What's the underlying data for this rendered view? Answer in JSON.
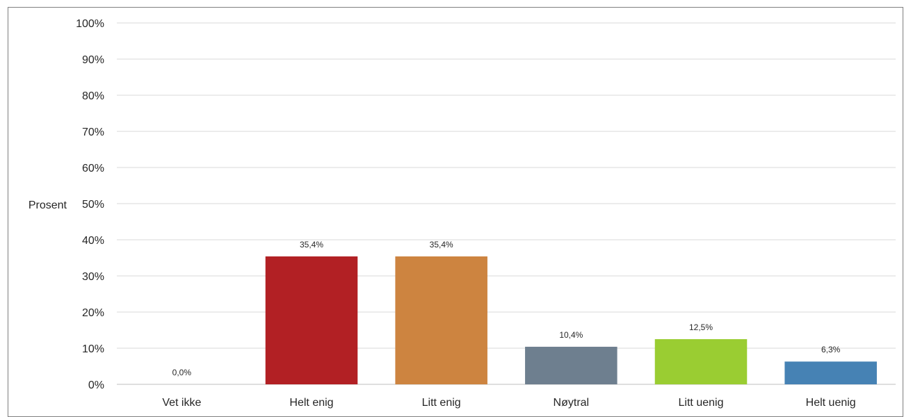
{
  "chart_data": {
    "type": "bar",
    "title": "",
    "xlabel": "",
    "ylabel": "Prosent",
    "categories": [
      "Vet ikke",
      "Helt enig",
      "Litt enig",
      "Nøytral",
      "Litt uenig",
      "Helt uenig"
    ],
    "values": [
      0.0,
      35.4,
      35.4,
      10.4,
      12.5,
      6.3
    ],
    "data_labels": [
      "0,0%",
      "35,4%",
      "35,4%",
      "10,4%",
      "12,5%",
      "6,3%"
    ],
    "bar_colors": [
      "#ffffff",
      "#b22024",
      "#cd8440",
      "#6e7f8f",
      "#9acd32",
      "#4682b4"
    ],
    "ylim": [
      0,
      100
    ],
    "yticks": [
      0,
      10,
      20,
      30,
      40,
      50,
      60,
      70,
      80,
      90,
      100
    ],
    "ytick_labels": [
      "0%",
      "10%",
      "20%",
      "30%",
      "40%",
      "50%",
      "60%",
      "70%",
      "80%",
      "90%",
      "100%"
    ],
    "grid": true,
    "legend": "none"
  }
}
